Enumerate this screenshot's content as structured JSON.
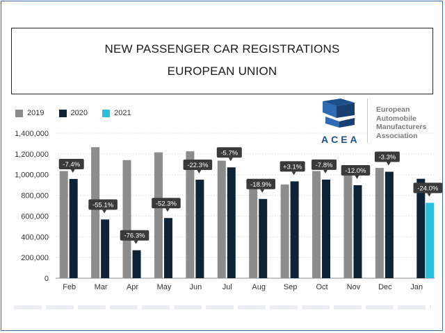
{
  "title": {
    "line1": "NEW PASSENGER CAR REGISTRATIONS",
    "line2": "EUROPEAN UNION"
  },
  "logo": {
    "word": "ACEA",
    "name_lines": [
      "European",
      "Automobile",
      "Manufacturers",
      "Association"
    ]
  },
  "legend": [
    {
      "label": "2019",
      "color": "#8c8c8c"
    },
    {
      "label": "2020",
      "color": "#0e2436"
    },
    {
      "label": "2021",
      "color": "#29c0dc"
    }
  ],
  "chart_data": {
    "type": "bar",
    "title": "",
    "categories": [
      "Feb",
      "Mar",
      "Apr",
      "May",
      "Jun",
      "Jul",
      "Aug",
      "Sep",
      "Oct",
      "Nov",
      "Dec",
      "Jan"
    ],
    "series": [
      {
        "name": "2019",
        "color": "#8c8c8c",
        "values": [
          1035000,
          1265000,
          1140000,
          1215000,
          1225000,
          1135000,
          940000,
          905000,
          1035000,
          1020000,
          1065000,
          null
        ]
      },
      {
        "name": "2020",
        "color": "#0e2436",
        "values": [
          958000,
          567000,
          270000,
          581000,
          951000,
          1070000,
          765000,
          935000,
          952000,
          898000,
          1028000,
          960000
        ]
      },
      {
        "name": "2021",
        "color": "#29c0dc",
        "values": [
          null,
          null,
          null,
          null,
          null,
          null,
          null,
          null,
          null,
          null,
          null,
          728000
        ]
      }
    ],
    "annotations": [
      "-7.4%",
      "-55.1%",
      "-76.3%",
      "-52.3%",
      "-22.3%",
      "-5.7%",
      "-18.9%",
      "+3.1%",
      "-7.8%",
      "-12.0%",
      "-3.3%",
      "-24.0%"
    ],
    "ylim": [
      0,
      1400000
    ],
    "yticks": [
      0,
      200000,
      400000,
      600000,
      800000,
      1000000,
      1200000,
      1400000
    ],
    "ytick_labels": [
      "0",
      "200,000",
      "400,000",
      "600,000",
      "800,000",
      "1,000,000",
      "1,200,000",
      "1,400,000"
    ],
    "xlabel": "",
    "ylabel": "",
    "grid": "horizontal",
    "legend_position": "top-left"
  }
}
